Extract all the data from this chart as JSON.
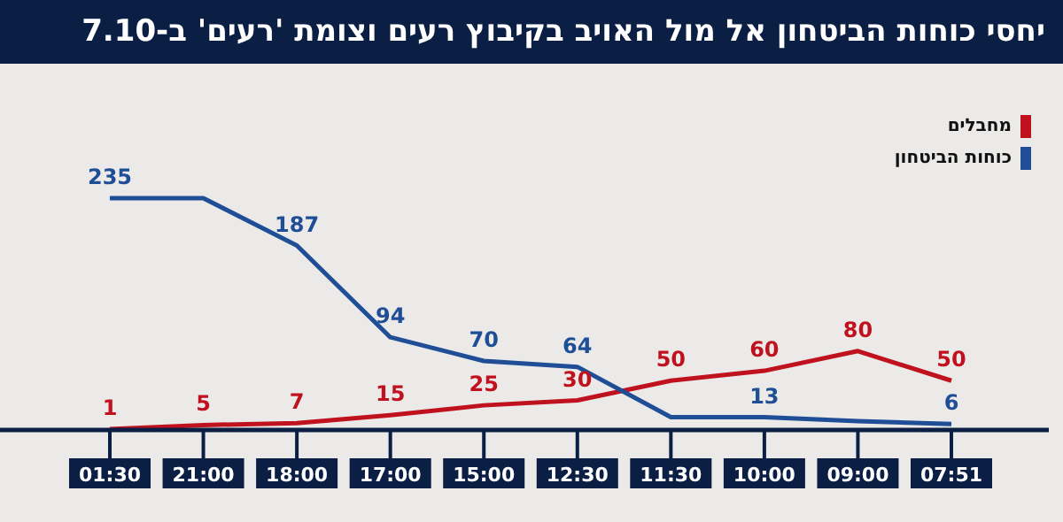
{
  "chart_data": {
    "type": "line",
    "title": "יחסי כוחות הביטחון אל מול האויב בקיבוץ רעים וצומת 'רעים' ב-7.10",
    "categories": [
      "01:30",
      "21:00",
      "18:00",
      "17:00",
      "15:00",
      "12:30",
      "11:30",
      "10:00",
      "09:00",
      "07:51"
    ],
    "series": [
      {
        "name": "מחבלים",
        "color": "#c0121e",
        "values": [
          1,
          5,
          7,
          15,
          25,
          30,
          50,
          60,
          80,
          50
        ],
        "value_labels": [
          "1",
          "5",
          "7",
          "15",
          "25",
          "30",
          "50",
          "60",
          "80",
          "50"
        ]
      },
      {
        "name": "כוחות הביטחון",
        "color": "#1f4e96",
        "values": [
          235,
          235,
          187,
          94,
          70,
          64,
          13,
          13,
          9,
          6
        ],
        "value_labels": [
          "235",
          null,
          "187",
          "94",
          "70",
          "64",
          null,
          "13",
          null,
          "6"
        ]
      }
    ],
    "legend": "top right"
  }
}
